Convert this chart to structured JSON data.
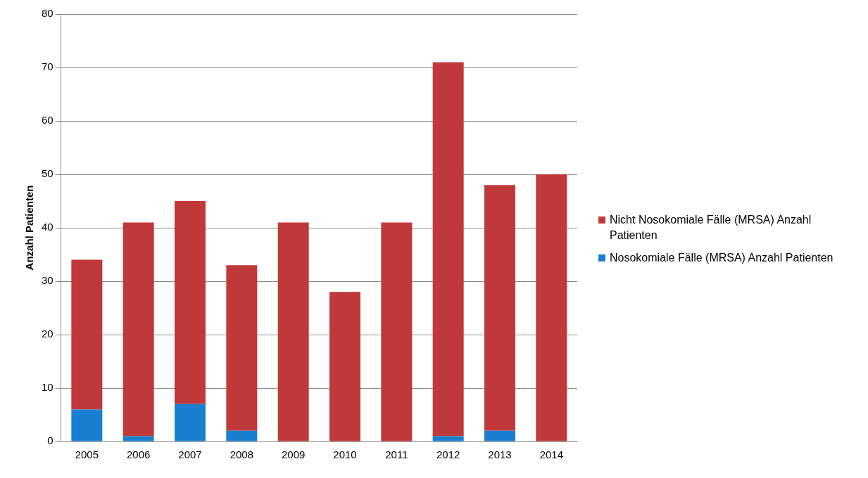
{
  "chart_data": {
    "type": "bar",
    "stacked": true,
    "ylabel": "Anzahl Patienten",
    "categories": [
      "2005",
      "2006",
      "2007",
      "2008",
      "2009",
      "2010",
      "2011",
      "2012",
      "2013",
      "2014"
    ],
    "series": [
      {
        "name": "Nosokomiale Fälle (MRSA) Anzahl Patienten",
        "color": "#1a7fd0",
        "values": [
          6,
          1,
          7,
          2,
          0,
          0,
          0,
          1,
          2,
          0
        ]
      },
      {
        "name": "Nicht Nosokomiale Fälle (MRSA) Anzahl Patienten",
        "color": "#c0393a",
        "values": [
          28,
          40,
          38,
          31,
          41,
          28,
          41,
          70,
          46,
          50
        ]
      }
    ],
    "ylim": [
      0,
      80
    ],
    "yticks": [
      0,
      10,
      20,
      30,
      40,
      50,
      60,
      70,
      80
    ],
    "grid": "y",
    "legend": "right"
  }
}
